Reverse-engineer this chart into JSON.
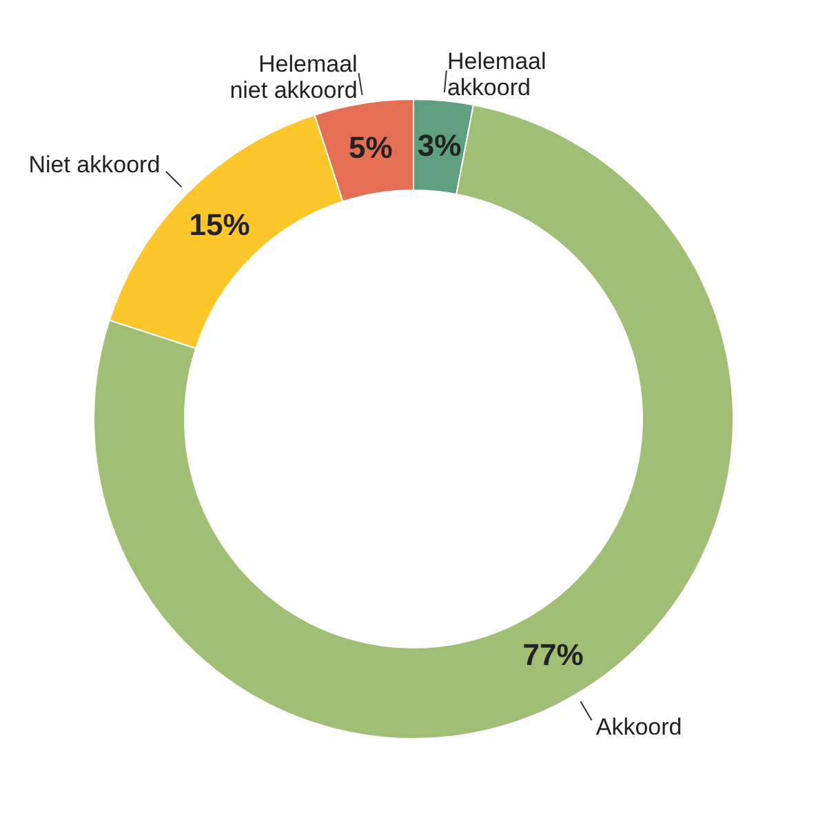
{
  "chart_data": {
    "type": "donut",
    "categories": [
      "Helemaal\nakkoord",
      "Akkoord",
      "Niet akkoord",
      "Helemaal\nniet akkoord"
    ],
    "values": [
      3,
      77,
      15,
      5
    ],
    "colors": [
      "#5f9e7f",
      "#a0bf74",
      "#fdc72c",
      "#e46f55"
    ],
    "value_labels": [
      "3%",
      "77%",
      "15%",
      "5%"
    ]
  }
}
